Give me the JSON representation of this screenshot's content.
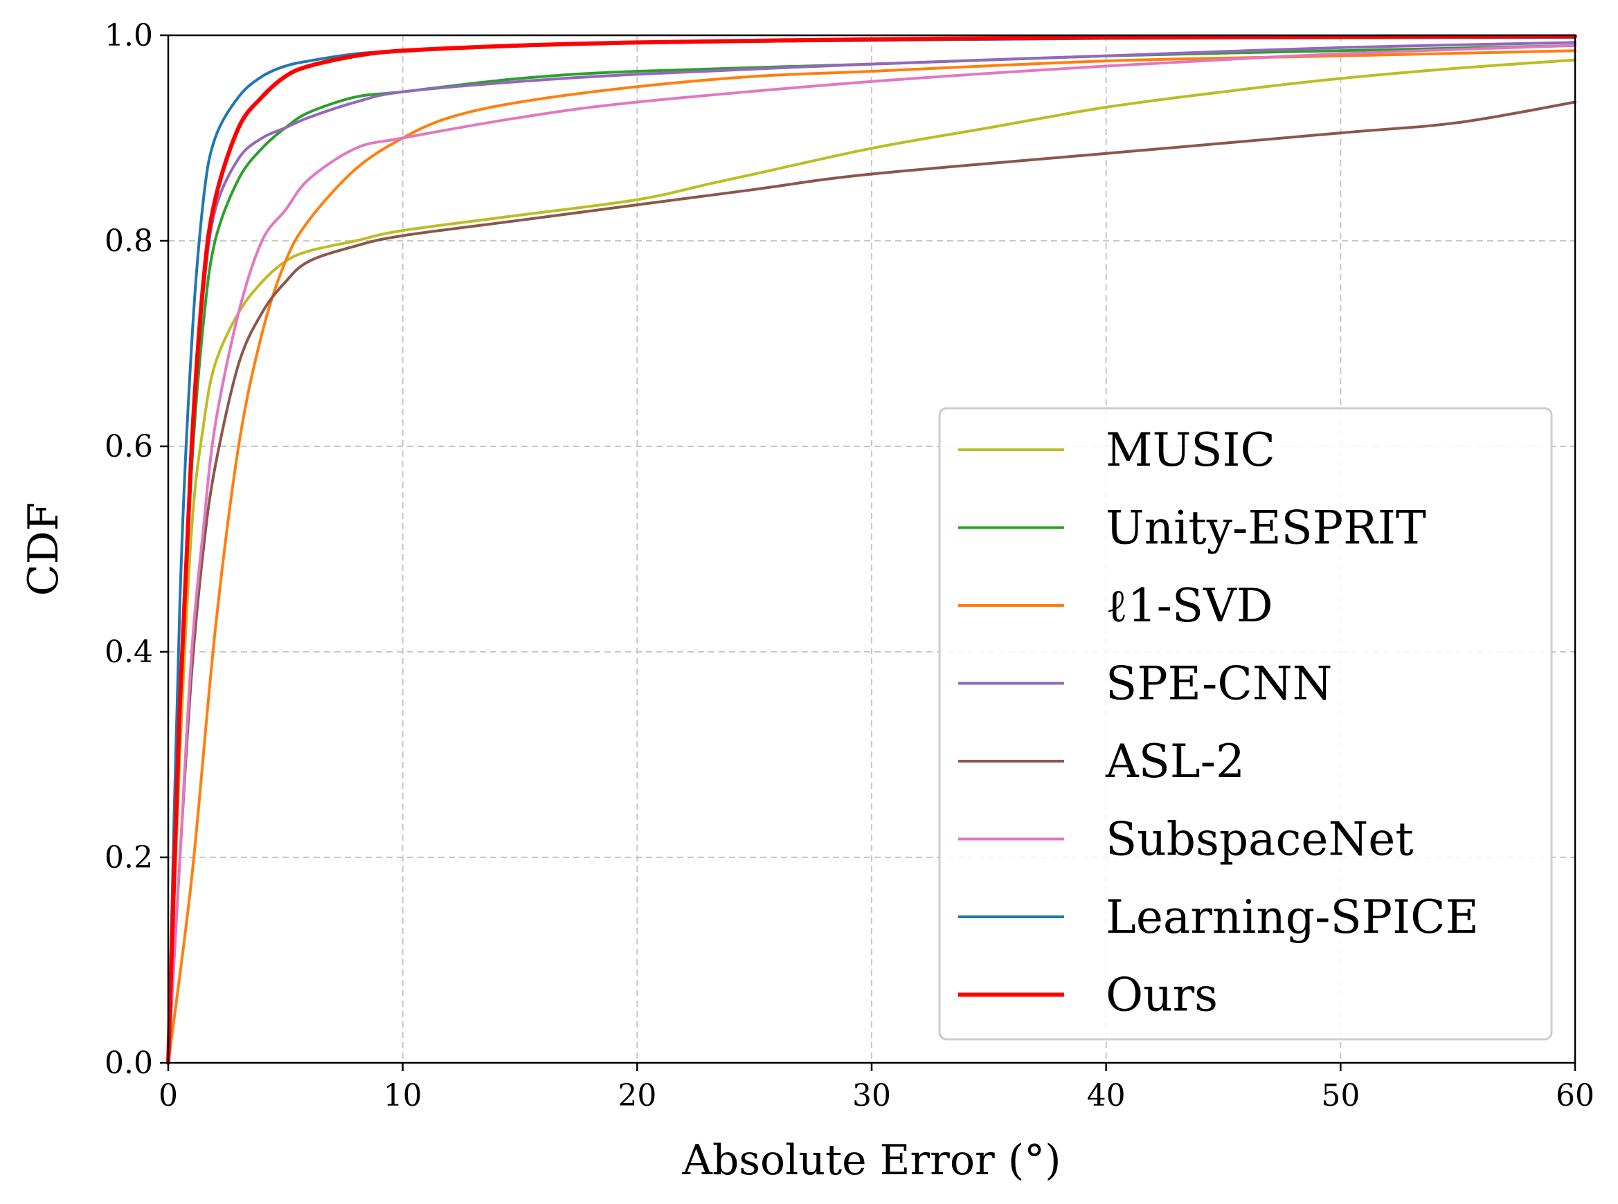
{
  "chart_data": {
    "type": "line",
    "xlabel": "Absolute Error (°)",
    "ylabel": "CDF",
    "xlim": [
      0,
      60
    ],
    "ylim": [
      0,
      1
    ],
    "x_ticks": [
      "0",
      "10",
      "20",
      "30",
      "40",
      "50",
      "60"
    ],
    "y_ticks": [
      "0.0",
      "0.2",
      "0.4",
      "0.6",
      "0.8",
      "1.0"
    ],
    "grid": true,
    "legend_position": "lower-right",
    "series": [
      {
        "name": "MUSIC",
        "color": "#bcbd22",
        "points": [
          [
            0,
            0
          ],
          [
            0.5,
            0.3
          ],
          [
            1,
            0.52
          ],
          [
            1.5,
            0.62
          ],
          [
            2,
            0.68
          ],
          [
            3,
            0.73
          ],
          [
            4,
            0.76
          ],
          [
            5,
            0.78
          ],
          [
            6,
            0.79
          ],
          [
            8,
            0.8
          ],
          [
            10,
            0.81
          ],
          [
            15,
            0.825
          ],
          [
            20,
            0.84
          ],
          [
            23,
            0.855
          ],
          [
            25,
            0.865
          ],
          [
            30,
            0.89
          ],
          [
            35,
            0.91
          ],
          [
            40,
            0.93
          ],
          [
            45,
            0.945
          ],
          [
            50,
            0.958
          ],
          [
            55,
            0.968
          ],
          [
            60,
            0.976
          ]
        ]
      },
      {
        "name": "Unity-ESPRIT",
        "color": "#2ca02c",
        "points": [
          [
            0,
            0
          ],
          [
            0.5,
            0.35
          ],
          [
            1,
            0.58
          ],
          [
            1.5,
            0.72
          ],
          [
            2,
            0.8
          ],
          [
            3,
            0.86
          ],
          [
            4,
            0.89
          ],
          [
            5,
            0.91
          ],
          [
            6,
            0.925
          ],
          [
            8,
            0.94
          ],
          [
            10,
            0.945
          ],
          [
            15,
            0.958
          ],
          [
            20,
            0.965
          ],
          [
            30,
            0.972
          ],
          [
            40,
            0.98
          ],
          [
            50,
            0.985
          ],
          [
            60,
            0.99
          ]
        ]
      },
      {
        "name": "ℓ1-SVD",
        "color": "#ff7f0e",
        "points": [
          [
            0,
            0
          ],
          [
            1,
            0.18
          ],
          [
            2,
            0.42
          ],
          [
            3,
            0.6
          ],
          [
            4,
            0.71
          ],
          [
            5,
            0.78
          ],
          [
            6,
            0.82
          ],
          [
            8,
            0.87
          ],
          [
            10,
            0.9
          ],
          [
            12,
            0.92
          ],
          [
            15,
            0.935
          ],
          [
            20,
            0.95
          ],
          [
            25,
            0.96
          ],
          [
            30,
            0.965
          ],
          [
            40,
            0.975
          ],
          [
            50,
            0.98
          ],
          [
            60,
            0.985
          ]
        ]
      },
      {
        "name": "SPE-CNN",
        "color": "#9467bd",
        "points": [
          [
            0,
            0
          ],
          [
            0.5,
            0.35
          ],
          [
            1,
            0.6
          ],
          [
            1.5,
            0.75
          ],
          [
            2,
            0.83
          ],
          [
            3,
            0.88
          ],
          [
            4,
            0.9
          ],
          [
            5,
            0.91
          ],
          [
            6,
            0.92
          ],
          [
            8,
            0.935
          ],
          [
            10,
            0.945
          ],
          [
            15,
            0.955
          ],
          [
            20,
            0.962
          ],
          [
            30,
            0.972
          ],
          [
            40,
            0.98
          ],
          [
            50,
            0.988
          ],
          [
            60,
            0.993
          ]
        ]
      },
      {
        "name": "ASL-2",
        "color": "#8c564b",
        "points": [
          [
            0,
            0
          ],
          [
            0.5,
            0.2
          ],
          [
            1,
            0.38
          ],
          [
            1.5,
            0.5
          ],
          [
            2,
            0.58
          ],
          [
            3,
            0.68
          ],
          [
            4,
            0.73
          ],
          [
            5,
            0.76
          ],
          [
            6,
            0.78
          ],
          [
            8,
            0.795
          ],
          [
            10,
            0.805
          ],
          [
            15,
            0.82
          ],
          [
            20,
            0.835
          ],
          [
            25,
            0.85
          ],
          [
            30,
            0.865
          ],
          [
            40,
            0.885
          ],
          [
            50,
            0.905
          ],
          [
            55,
            0.915
          ],
          [
            60,
            0.935
          ]
        ]
      },
      {
        "name": "SubspaceNet",
        "color": "#e377c2",
        "points": [
          [
            0,
            0
          ],
          [
            0.5,
            0.2
          ],
          [
            1,
            0.4
          ],
          [
            1.5,
            0.52
          ],
          [
            2,
            0.62
          ],
          [
            3,
            0.73
          ],
          [
            4,
            0.8
          ],
          [
            5,
            0.83
          ],
          [
            6,
            0.86
          ],
          [
            8,
            0.89
          ],
          [
            10,
            0.9
          ],
          [
            15,
            0.92
          ],
          [
            20,
            0.935
          ],
          [
            30,
            0.955
          ],
          [
            40,
            0.97
          ],
          [
            50,
            0.982
          ],
          [
            60,
            0.99
          ]
        ]
      },
      {
        "name": "Learning-SPICE",
        "color": "#1f77b4",
        "points": [
          [
            0,
            0
          ],
          [
            0.5,
            0.45
          ],
          [
            1,
            0.7
          ],
          [
            1.5,
            0.84
          ],
          [
            2,
            0.9
          ],
          [
            3,
            0.94
          ],
          [
            4,
            0.96
          ],
          [
            5,
            0.97
          ],
          [
            6,
            0.975
          ],
          [
            8,
            0.982
          ],
          [
            10,
            0.985
          ],
          [
            15,
            0.99
          ],
          [
            20,
            0.993
          ],
          [
            30,
            0.995
          ],
          [
            40,
            0.997
          ],
          [
            60,
            0.998
          ]
        ]
      },
      {
        "name": "Ours",
        "color": "#ff0000",
        "points": [
          [
            0,
            0
          ],
          [
            0.5,
            0.35
          ],
          [
            1,
            0.6
          ],
          [
            1.5,
            0.76
          ],
          [
            2,
            0.84
          ],
          [
            3,
            0.91
          ],
          [
            4,
            0.94
          ],
          [
            5,
            0.96
          ],
          [
            6,
            0.97
          ],
          [
            8,
            0.98
          ],
          [
            10,
            0.985
          ],
          [
            15,
            0.99
          ],
          [
            20,
            0.993
          ],
          [
            30,
            0.996
          ],
          [
            40,
            0.998
          ],
          [
            60,
            0.999
          ]
        ]
      }
    ]
  }
}
